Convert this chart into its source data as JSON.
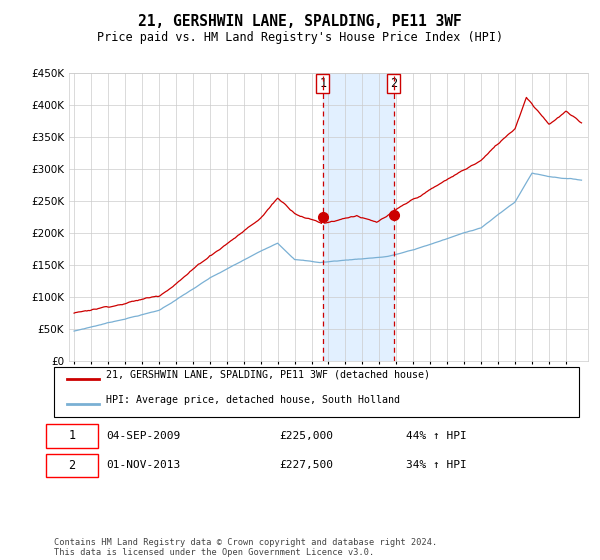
{
  "title": "21, GERSHWIN LANE, SPALDING, PE11 3WF",
  "subtitle": "Price paid vs. HM Land Registry's House Price Index (HPI)",
  "ylim": [
    0,
    450000
  ],
  "yticks": [
    0,
    50000,
    100000,
    150000,
    200000,
    250000,
    300000,
    350000,
    400000,
    450000
  ],
  "ytick_labels": [
    "£0",
    "£50K",
    "£100K",
    "£150K",
    "£200K",
    "£250K",
    "£300K",
    "£350K",
    "£400K",
    "£450K"
  ],
  "legend_line1": "21, GERSHWIN LANE, SPALDING, PE11 3WF (detached house)",
  "legend_line2": "HPI: Average price, detached house, South Holland",
  "legend_line1_color": "#cc0000",
  "legend_line2_color": "#7ab0d4",
  "purchase1_year": 2009.667,
  "purchase1_price": 225000,
  "purchase2_year": 2013.833,
  "purchase2_price": 227500,
  "bg_color": "#ffffff",
  "grid_color": "#cccccc",
  "shade_color": "#ddeeff",
  "footer": "Contains HM Land Registry data © Crown copyright and database right 2024.\nThis data is licensed under the Open Government Licence v3.0."
}
